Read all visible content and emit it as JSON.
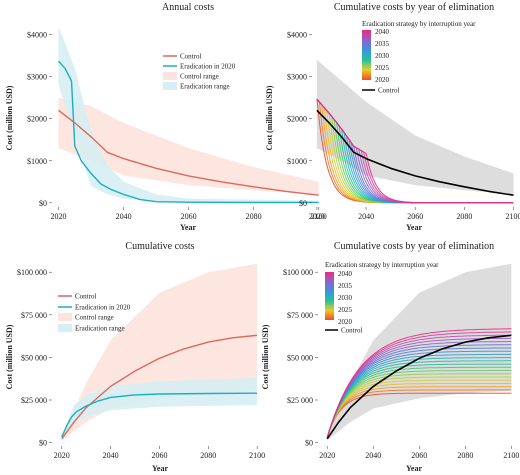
{
  "palette": {
    "control": "#e0675a",
    "eradication": "#1ab0c3",
    "control_range": "#fde3dd",
    "eradication_range": "#d6eef4",
    "grey_band": "#d7d7d7",
    "control_black": "#000000",
    "strategy_colors": [
      "#ee2a7b",
      "#c648b8",
      "#8f62cf",
      "#5c77d8",
      "#3a93dc",
      "#1fb3c6",
      "#23c29a",
      "#5ccd63",
      "#a6d243",
      "#e8cc2a",
      "#f39a23",
      "#ef4b24"
    ]
  },
  "chart_data": [
    {
      "type": "line",
      "title": "Annual costs",
      "xlabel": "Year",
      "ylabel": "Cost (million USD)",
      "xlim": [
        2018,
        2101
      ],
      "ylim": [
        -100,
        4300
      ],
      "xticks": [
        2020,
        2040,
        2060,
        2080,
        2100
      ],
      "xtick_labels": [
        "2020",
        "2040",
        "2060",
        "2080",
        "2100"
      ],
      "yticks": [
        0,
        1000,
        2000,
        3000,
        4000
      ],
      "ytick_labels": [
        "$0",
        "$1000",
        "$2000",
        "$3000",
        "$4000"
      ],
      "legend": {
        "position": "top-right",
        "entries": [
          "Control",
          "Eradication in 2020",
          "Control range",
          "Eradication range"
        ]
      },
      "series": [
        {
          "name": "Control",
          "style": "line",
          "x": [
            2020,
            2025,
            2030,
            2035,
            2040,
            2050,
            2060,
            2070,
            2080,
            2090,
            2100
          ],
          "y": [
            2200,
            1900,
            1570,
            1200,
            1050,
            820,
            640,
            500,
            380,
            270,
            180
          ]
        },
        {
          "name": "Eradication in 2020",
          "style": "line",
          "x": [
            2020,
            2022,
            2024,
            2025,
            2027,
            2030,
            2033,
            2036,
            2040,
            2045,
            2050,
            2060,
            2080,
            2100
          ],
          "y": [
            3370,
            3200,
            2900,
            1350,
            1000,
            700,
            450,
            320,
            200,
            80,
            25,
            15,
            10,
            10
          ]
        },
        {
          "name": "Control range",
          "style": "band",
          "x": [
            2020,
            2030,
            2040,
            2060,
            2080,
            2100
          ],
          "lower": [
            1300,
            1000,
            650,
            420,
            300,
            200
          ],
          "upper": [
            2500,
            2300,
            1900,
            1300,
            850,
            500
          ]
        },
        {
          "name": "Eradication range",
          "style": "band",
          "x": [
            2020,
            2025,
            2030,
            2035,
            2040,
            2050,
            2060,
            2100
          ],
          "lower": [
            2800,
            1600,
            400,
            200,
            100,
            20,
            10,
            5
          ],
          "upper": [
            4200,
            3200,
            1700,
            900,
            500,
            200,
            100,
            50
          ]
        }
      ]
    },
    {
      "type": "line",
      "title": "Cumulative costs by year of elimination",
      "xlabel": "Year",
      "ylabel": "Cost (million USD)",
      "xlim": [
        2018,
        2101
      ],
      "ylim": [
        -100,
        4300
      ],
      "xticks": [
        2020,
        2040,
        2060,
        2080,
        2100
      ],
      "xtick_labels": [
        "2020",
        "2040",
        "2060",
        "2080",
        "2100"
      ],
      "yticks": [
        0,
        1000,
        2000,
        3000,
        4000
      ],
      "ytick_labels": [
        "$0",
        "$1000",
        "$2000",
        "$3000",
        "$4000"
      ],
      "legend": {
        "position": "top",
        "title": "Eradication strategy by interruption year",
        "colorbar_labels": [
          "2040",
          "2035",
          "2030",
          "2025",
          "2020"
        ],
        "entries": [
          "Control"
        ]
      },
      "strategy_curves": {
        "interruption_years": [
          2020,
          2021,
          2022,
          2023,
          2024,
          2025,
          2026,
          2027,
          2028,
          2029,
          2030,
          2031,
          2032,
          2033,
          2034,
          2035,
          2036,
          2037,
          2038,
          2039,
          2040
        ],
        "drop_years": 12
      },
      "series": [
        {
          "name": "Control",
          "style": "line",
          "x": [
            2020,
            2025,
            2030,
            2035,
            2040,
            2050,
            2060,
            2070,
            2080,
            2090,
            2100
          ],
          "y": [
            2200,
            1900,
            1570,
            1200,
            1050,
            820,
            640,
            500,
            380,
            270,
            180
          ]
        },
        {
          "name": "Control range",
          "style": "band",
          "x": [
            2020,
            2030,
            2040,
            2060,
            2080,
            2100
          ],
          "lower": [
            1300,
            1000,
            650,
            420,
            300,
            200
          ],
          "upper": [
            3400,
            2900,
            2400,
            1600,
            1100,
            700
          ]
        }
      ]
    },
    {
      "type": "line",
      "title": "Cumulative costs",
      "xlabel": "Year",
      "ylabel": "Cost (million USD)",
      "xlim": [
        2016,
        2102
      ],
      "ylim": [
        -2000,
        106000
      ],
      "xticks": [
        2020,
        2040,
        2060,
        2080,
        2100
      ],
      "xtick_labels": [
        "2020",
        "2040",
        "2060",
        "2080",
        "2100"
      ],
      "yticks": [
        0,
        25000,
        50000,
        75000,
        100000
      ],
      "ytick_labels": [
        "$0",
        "$25 000",
        "$50 000",
        "$75 000",
        "$100 000"
      ],
      "legend": {
        "position": "top-left",
        "entries": [
          "Control",
          "Eradication in 2020",
          "Control range",
          "Eradication range"
        ]
      },
      "series": [
        {
          "name": "Control",
          "style": "line",
          "x": [
            2020,
            2025,
            2030,
            2040,
            2050,
            2060,
            2070,
            2080,
            2090,
            2100
          ],
          "y": [
            2200,
            12000,
            20500,
            33000,
            42000,
            49500,
            55000,
            59000,
            61500,
            63000
          ]
        },
        {
          "name": "Eradication in 2020",
          "style": "line",
          "x": [
            2020,
            2022,
            2024,
            2026,
            2030,
            2035,
            2040,
            2050,
            2060,
            2080,
            2100
          ],
          "y": [
            3300,
            9800,
            15000,
            18000,
            21500,
            24500,
            26500,
            28000,
            28500,
            28800,
            29000
          ]
        },
        {
          "name": "Control range",
          "style": "band",
          "x": [
            2020,
            2030,
            2040,
            2060,
            2080,
            2100
          ],
          "lower": [
            1300,
            12000,
            20000,
            26000,
            29000,
            30500
          ],
          "upper": [
            3500,
            35000,
            60000,
            88000,
            100000,
            105000
          ]
        },
        {
          "name": "Eradication range",
          "style": "band",
          "x": [
            2020,
            2025,
            2030,
            2040,
            2060,
            2100
          ],
          "lower": [
            2800,
            12000,
            15000,
            19000,
            21000,
            22000
          ],
          "upper": [
            4200,
            22000,
            28000,
            33000,
            36000,
            38000
          ]
        }
      ]
    },
    {
      "type": "line",
      "title": "Cumulative costs by year of elimination",
      "xlabel": "Year",
      "ylabel": "Cost (million USD)",
      "xlim": [
        2016,
        2102
      ],
      "ylim": [
        -2000,
        106000
      ],
      "xticks": [
        2020,
        2040,
        2060,
        2080,
        2100
      ],
      "xtick_labels": [
        "2020",
        "2040",
        "2060",
        "2080",
        "2100"
      ],
      "yticks": [
        0,
        25000,
        50000,
        75000,
        100000
      ],
      "ytick_labels": [
        "$0",
        "$25 000",
        "$50 000",
        "$75 000",
        "$100 000"
      ],
      "legend": {
        "position": "top-left",
        "title": "Eradication strategy by interruption year",
        "colorbar_labels": [
          "2040",
          "2035",
          "2030",
          "2025",
          "2020"
        ],
        "entries": [
          "Control"
        ]
      },
      "strategy_curves": {
        "interruption_years": [
          2020,
          2021,
          2022,
          2023,
          2024,
          2025,
          2026,
          2027,
          2028,
          2029,
          2030,
          2031,
          2032,
          2033,
          2034,
          2035,
          2036,
          2037,
          2038,
          2039,
          2040
        ],
        "plateau_start": 29000,
        "plateau_end": 67000
      },
      "series": [
        {
          "name": "Control",
          "style": "line",
          "x": [
            2020,
            2025,
            2030,
            2040,
            2050,
            2060,
            2070,
            2080,
            2090,
            2100
          ],
          "y": [
            2200,
            12000,
            20500,
            33000,
            42000,
            49500,
            55000,
            59000,
            61500,
            63000
          ]
        },
        {
          "name": "Control range",
          "style": "band",
          "x": [
            2020,
            2030,
            2040,
            2060,
            2080,
            2100
          ],
          "lower": [
            1300,
            12000,
            20000,
            26000,
            29000,
            30500
          ],
          "upper": [
            3500,
            35000,
            60000,
            88000,
            100000,
            105000
          ]
        }
      ]
    }
  ]
}
